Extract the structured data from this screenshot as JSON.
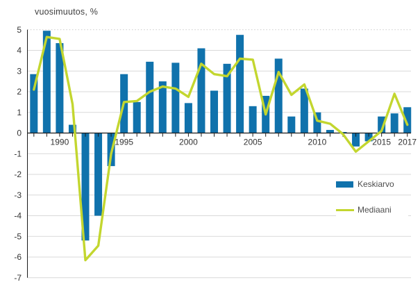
{
  "title": "vuosimuutos, %",
  "legend": {
    "items": [
      {
        "label": "Keskiarvo",
        "type": "bar",
        "color": "#1072ac"
      },
      {
        "label": "Mediaani",
        "type": "line",
        "color": "#c3d62f"
      }
    ]
  },
  "colors": {
    "bar": "#1072ac",
    "line": "#c3d62f",
    "grid": "#d9d9d9",
    "grid_dotted": "#c9c9c9",
    "axis": "#1a1a1a",
    "tick_text": "#333333",
    "title_text": "#404040",
    "legend_text": "#4d4d4d",
    "background": "#ffffff"
  },
  "chart_data": {
    "type": "bar+line",
    "title": "vuosimuutos, %",
    "x": [
      1988,
      1989,
      1990,
      1991,
      1992,
      1993,
      1994,
      1995,
      1996,
      1997,
      1998,
      1999,
      2000,
      2001,
      2002,
      2003,
      2004,
      2005,
      2006,
      2007,
      2008,
      2009,
      2010,
      2011,
      2012,
      2013,
      2014,
      2015,
      2016,
      2017
    ],
    "series": [
      {
        "name": "Keskiarvo",
        "type": "bar",
        "values": [
          2.85,
          4.95,
          4.35,
          0.4,
          -5.2,
          -4.0,
          -1.6,
          2.85,
          1.5,
          3.45,
          2.5,
          3.4,
          1.45,
          4.1,
          2.05,
          3.35,
          4.75,
          1.3,
          1.8,
          3.6,
          0.8,
          2.15,
          1.0,
          0.15,
          0.05,
          -0.65,
          -0.4,
          0.8,
          0.95,
          1.25
        ]
      },
      {
        "name": "Mediaani",
        "type": "line",
        "values": [
          2.1,
          4.65,
          4.55,
          1.4,
          -6.15,
          -5.45,
          -1.0,
          1.5,
          1.55,
          2.0,
          2.25,
          2.15,
          1.75,
          3.35,
          2.85,
          2.75,
          3.6,
          3.55,
          0.9,
          2.95,
          1.85,
          2.35,
          0.6,
          0.45,
          -0.05,
          -0.9,
          -0.4,
          0.1,
          1.9,
          0.4
        ]
      }
    ],
    "ylim": [
      -7,
      5
    ],
    "yticks": [
      5,
      4,
      3,
      2,
      1,
      0,
      -1,
      -2,
      -3,
      -4,
      -5,
      -6,
      -7
    ],
    "xticks_labeled": [
      1990,
      1995,
      2000,
      2005,
      2010,
      2015,
      2017
    ],
    "xtick_marks": "every-year",
    "grid": "horizontal",
    "top_gridline_style": "dotted",
    "legend_position": "right-middle"
  }
}
